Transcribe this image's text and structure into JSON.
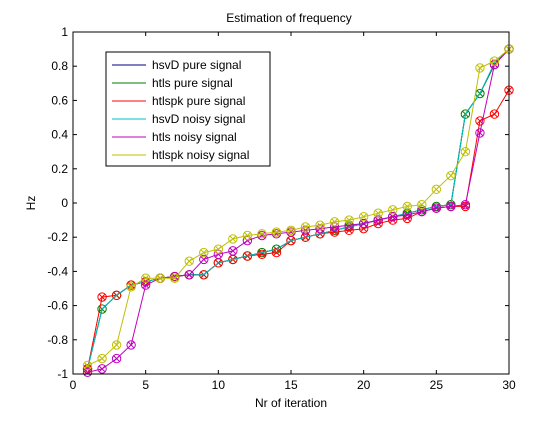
{
  "chart_data": {
    "type": "line",
    "title": "Estimation of frequency",
    "xlabel": "Nr of iteration",
    "ylabel": "Hz",
    "xlim": [
      0,
      30
    ],
    "ylim": [
      -1,
      1
    ],
    "xticks": [
      0,
      5,
      10,
      15,
      20,
      25,
      30
    ],
    "yticks": [
      -1,
      -0.8,
      -0.6,
      -0.4,
      -0.2,
      0,
      0.2,
      0.4,
      0.6,
      0.8,
      1
    ],
    "ytick_labels": [
      "-1",
      "-0.8",
      "-0.6",
      "-0.4",
      "-0.2",
      "0",
      "0.2",
      "0.4",
      "0.6",
      "0.8",
      "1"
    ],
    "grid": false,
    "legend_position": "top-left",
    "x": [
      1,
      2,
      3,
      4,
      5,
      6,
      7,
      8,
      9,
      10,
      11,
      12,
      13,
      14,
      15,
      16,
      17,
      18,
      19,
      20,
      21,
      22,
      23,
      24,
      25,
      26,
      27,
      28,
      29,
      30
    ],
    "series": [
      {
        "name": "hsvD pure signal",
        "color": "#00007f",
        "marker": "none",
        "values": [
          -0.97,
          -0.62,
          -0.54,
          -0.48,
          -0.46,
          -0.44,
          -0.43,
          -0.42,
          -0.42,
          -0.35,
          -0.33,
          -0.31,
          -0.29,
          -0.27,
          -0.22,
          -0.2,
          -0.18,
          -0.16,
          -0.14,
          -0.12,
          -0.1,
          -0.08,
          -0.06,
          -0.04,
          -0.02,
          -0.01,
          0.52,
          0.64,
          0.81,
          0.9
        ]
      },
      {
        "name": "htls pure signal",
        "color": "#007f00",
        "marker": "circle-x",
        "values": [
          -0.97,
          -0.62,
          -0.54,
          -0.48,
          -0.46,
          -0.44,
          -0.43,
          -0.42,
          -0.42,
          -0.35,
          -0.33,
          -0.31,
          -0.29,
          -0.27,
          -0.22,
          -0.2,
          -0.18,
          -0.16,
          -0.14,
          -0.12,
          -0.1,
          -0.08,
          -0.06,
          -0.04,
          -0.02,
          -0.01,
          0.52,
          0.64,
          0.81,
          0.9
        ]
      },
      {
        "name": "htlspk pure signal",
        "color": "#ff0000",
        "marker": "circle-x",
        "values": [
          -0.97,
          -0.55,
          -0.54,
          -0.48,
          -0.46,
          -0.44,
          -0.43,
          -0.42,
          -0.42,
          -0.35,
          -0.33,
          -0.31,
          -0.3,
          -0.29,
          -0.22,
          -0.2,
          -0.18,
          -0.17,
          -0.16,
          -0.15,
          -0.12,
          -0.1,
          -0.09,
          -0.05,
          -0.03,
          -0.02,
          -0.02,
          0.48,
          0.52,
          0.66
        ]
      },
      {
        "name": "hsvD noisy signal",
        "color": "#00bfbf",
        "marker": "none",
        "values": [
          -0.97,
          -0.62,
          -0.54,
          -0.48,
          -0.46,
          -0.44,
          -0.43,
          -0.42,
          -0.42,
          -0.35,
          -0.33,
          -0.31,
          -0.29,
          -0.27,
          -0.22,
          -0.2,
          -0.18,
          -0.16,
          -0.14,
          -0.12,
          -0.1,
          -0.08,
          -0.06,
          -0.04,
          -0.02,
          -0.01,
          0.52,
          0.64,
          0.82,
          0.9
        ]
      },
      {
        "name": "htls noisy signal",
        "color": "#bf00bf",
        "marker": "circle-x",
        "values": [
          -0.99,
          -0.97,
          -0.91,
          -0.83,
          -0.48,
          -0.44,
          -0.43,
          -0.42,
          -0.33,
          -0.3,
          -0.28,
          -0.22,
          -0.19,
          -0.18,
          -0.17,
          -0.16,
          -0.15,
          -0.14,
          -0.13,
          -0.12,
          -0.1,
          -0.08,
          -0.07,
          -0.05,
          -0.03,
          -0.02,
          -0.01,
          0.41,
          0.81,
          0.9
        ]
      },
      {
        "name": "htlspk noisy signal",
        "color": "#bfbf00",
        "marker": "circle-x",
        "values": [
          -0.95,
          -0.91,
          -0.83,
          -0.49,
          -0.44,
          -0.44,
          -0.44,
          -0.34,
          -0.29,
          -0.27,
          -0.21,
          -0.19,
          -0.18,
          -0.17,
          -0.16,
          -0.14,
          -0.13,
          -0.11,
          -0.1,
          -0.08,
          -0.06,
          -0.04,
          -0.02,
          -0.01,
          0.08,
          0.16,
          0.3,
          0.79,
          0.83,
          0.9
        ]
      }
    ]
  }
}
